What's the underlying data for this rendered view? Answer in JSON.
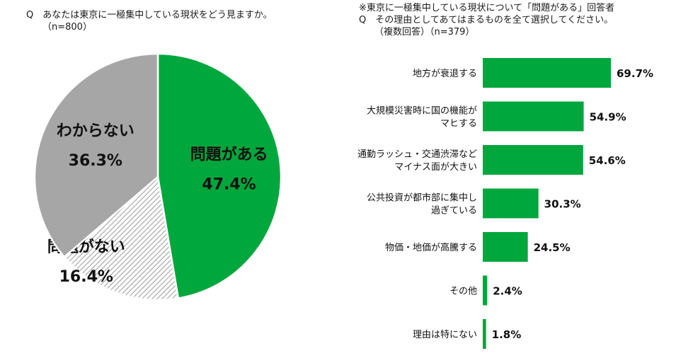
{
  "left_chart": {
    "question": "Q　あなたは東京に一極集中している現状をどう見ますか。",
    "sample": "（n=800）"
  },
  "right_chart": {
    "note": "※東京に一極集中している現状について「問題がある」回答者",
    "question": "Q　その理由としてあてはまるものを全て選択してください。",
    "sample": "（複数回答）（n=379）"
  },
  "colors": {
    "green": "#00a73c",
    "gray": "#a6a6a6",
    "hatch_bg": "#ffffff",
    "hatch_line": "#9a9a9a"
  },
  "chart_data": [
    {
      "type": "pie",
      "slices": [
        {
          "label": "問題がある",
          "value": 47.4,
          "value_label": "47.4%",
          "color": "#00a73c",
          "pattern": "solid"
        },
        {
          "label": "問題がない",
          "value": 16.4,
          "value_label": "16.4%",
          "color": "#9a9a9a",
          "pattern": "hatched"
        },
        {
          "label": "わからない",
          "value": 36.3,
          "value_label": "36.3%",
          "color": "#a6a6a6",
          "pattern": "solid"
        }
      ]
    },
    {
      "type": "bar",
      "orientation": "horizontal",
      "categories": [
        [
          "地方が衰退する"
        ],
        [
          "大規模災害時に国の機能が",
          "マヒする"
        ],
        [
          "通勤ラッシュ・交通渋滞など",
          "マイナス面が大きい"
        ],
        [
          "公共投資が都市部に集中し",
          "過ぎている"
        ],
        [
          "物価・地価が高騰する"
        ],
        [
          "その他"
        ],
        [
          "理由は特にない"
        ]
      ],
      "values": [
        69.7,
        54.9,
        54.6,
        30.3,
        24.5,
        2.4,
        1.8
      ],
      "value_labels": [
        "69.7%",
        "54.9%",
        "54.6%",
        "30.3%",
        "24.5%",
        "2.4%",
        "1.8%"
      ],
      "color": "#00a73c",
      "grid": false
    }
  ]
}
